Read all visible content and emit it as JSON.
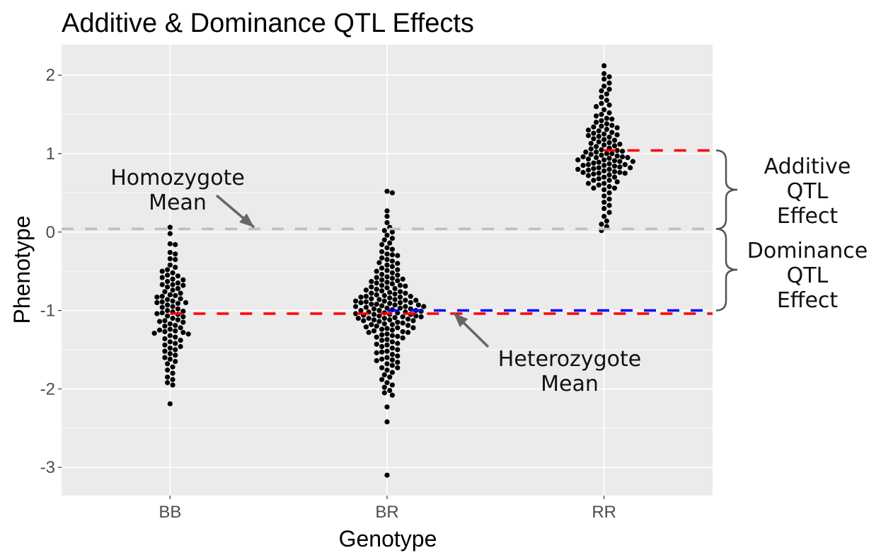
{
  "chart_data": {
    "type": "scatter",
    "subtype": "beeswarm",
    "title": "Additive & Dominance QTL Effects",
    "xlabel": "Genotype",
    "ylabel": "Phenotype",
    "categories": [
      "BB",
      "BR",
      "RR"
    ],
    "ylim": [
      -3.36,
      2.39
    ],
    "yticks": [
      2,
      1,
      0,
      -1,
      -2,
      -3
    ],
    "ytick_labels": [
      "2",
      "1",
      "0",
      "-1",
      "-2",
      "-3"
    ],
    "grid": true,
    "background": "#ebebeb",
    "point_color": "#000000",
    "points": {
      "BB": [
        0.06,
        -0.02,
        -0.15,
        -0.16,
        -0.26,
        -0.28,
        -0.34,
        -0.35,
        -0.42,
        -0.45,
        -0.48,
        -0.5,
        -0.52,
        -0.55,
        -0.56,
        -0.58,
        -0.6,
        -0.61,
        -0.63,
        -0.65,
        -0.67,
        -0.67,
        -0.68,
        -0.7,
        -0.72,
        -0.74,
        -0.76,
        -0.78,
        -0.8,
        -0.81,
        -0.82,
        -0.83,
        -0.85,
        -0.86,
        -0.88,
        -0.89,
        -0.9,
        -0.9,
        -0.91,
        -0.93,
        -0.95,
        -0.96,
        -0.98,
        -1.0,
        -1.01,
        -1.02,
        -1.03,
        -1.04,
        -1.05,
        -1.07,
        -1.08,
        -1.1,
        -1.12,
        -1.13,
        -1.14,
        -1.15,
        -1.17,
        -1.19,
        -1.2,
        -1.22,
        -1.24,
        -1.25,
        -1.26,
        -1.27,
        -1.28,
        -1.29,
        -1.3,
        -1.32,
        -1.34,
        -1.36,
        -1.38,
        -1.4,
        -1.42,
        -1.44,
        -1.46,
        -1.48,
        -1.5,
        -1.52,
        -1.55,
        -1.57,
        -1.6,
        -1.62,
        -1.65,
        -1.68,
        -1.72,
        -1.76,
        -1.8,
        -1.85,
        -1.88,
        -1.92,
        -1.95,
        -2.19
      ],
      "BR": [
        0.52,
        0.5,
        0.27,
        0.2,
        0.12,
        0.06,
        0.02,
        0.0,
        -0.04,
        -0.08,
        -0.1,
        -0.14,
        -0.16,
        -0.2,
        -0.22,
        -0.25,
        -0.28,
        -0.3,
        -0.33,
        -0.35,
        -0.37,
        -0.4,
        -0.42,
        -0.44,
        -0.46,
        -0.48,
        -0.5,
        -0.52,
        -0.54,
        -0.55,
        -0.57,
        -0.58,
        -0.6,
        -0.61,
        -0.62,
        -0.64,
        -0.65,
        -0.66,
        -0.68,
        -0.69,
        -0.7,
        -0.71,
        -0.72,
        -0.74,
        -0.75,
        -0.76,
        -0.77,
        -0.78,
        -0.79,
        -0.8,
        -0.81,
        -0.82,
        -0.83,
        -0.84,
        -0.85,
        -0.86,
        -0.86,
        -0.87,
        -0.88,
        -0.89,
        -0.9,
        -0.9,
        -0.91,
        -0.92,
        -0.93,
        -0.94,
        -0.95,
        -0.95,
        -0.96,
        -0.97,
        -0.98,
        -0.99,
        -1.0,
        -1.0,
        -1.01,
        -1.02,
        -1.03,
        -1.04,
        -1.05,
        -1.05,
        -1.06,
        -1.07,
        -1.08,
        -1.09,
        -1.1,
        -1.1,
        -1.11,
        -1.12,
        -1.13,
        -1.14,
        -1.15,
        -1.16,
        -1.17,
        -1.18,
        -1.19,
        -1.2,
        -1.21,
        -1.22,
        -1.23,
        -1.24,
        -1.25,
        -1.26,
        -1.27,
        -1.28,
        -1.3,
        -1.31,
        -1.32,
        -1.34,
        -1.35,
        -1.37,
        -1.38,
        -1.4,
        -1.42,
        -1.44,
        -1.46,
        -1.48,
        -1.5,
        -1.52,
        -1.54,
        -1.56,
        -1.58,
        -1.6,
        -1.62,
        -1.64,
        -1.66,
        -1.68,
        -1.7,
        -1.73,
        -1.76,
        -1.79,
        -1.82,
        -1.85,
        -1.88,
        -1.92,
        -1.95,
        -1.98,
        -2.02,
        -2.05,
        -2.08,
        -2.23,
        -2.42,
        -3.1,
        -0.63,
        -0.73,
        -0.83,
        -0.93,
        -1.03,
        -1.13,
        -0.88,
        -0.98,
        -1.08,
        -0.78,
        -1.18,
        -0.68,
        -1.28,
        -0.92,
        -1.02,
        -0.97,
        -1.07,
        -0.87,
        -0.82,
        -1.12,
        -1.22,
        -0.59,
        -1.33,
        -1.43,
        -0.49,
        -0.39,
        -1.53,
        -1.63,
        -0.29,
        -1.73,
        -0.95,
        -1.0,
        -1.05,
        -0.9,
        -1.1
      ],
      "RR": [
        2.12,
        2.02,
        1.98,
        1.95,
        1.9,
        1.86,
        1.82,
        1.8,
        1.76,
        1.72,
        1.68,
        1.64,
        1.6,
        1.56,
        1.52,
        1.48,
        1.45,
        1.42,
        1.4,
        1.38,
        1.35,
        1.33,
        1.31,
        1.29,
        1.27,
        1.25,
        1.23,
        1.21,
        1.19,
        1.17,
        1.15,
        1.13,
        1.11,
        1.09,
        1.07,
        1.06,
        1.05,
        1.04,
        1.03,
        1.02,
        1.0,
        0.99,
        0.98,
        0.97,
        0.96,
        0.95,
        0.94,
        0.93,
        0.92,
        0.91,
        0.9,
        0.89,
        0.88,
        0.87,
        0.86,
        0.85,
        0.84,
        0.83,
        0.82,
        0.81,
        0.8,
        0.79,
        0.78,
        0.77,
        0.76,
        0.75,
        0.74,
        0.73,
        0.72,
        0.7,
        0.68,
        0.66,
        0.64,
        0.62,
        0.6,
        0.58,
        0.56,
        0.54,
        0.5,
        0.46,
        0.42,
        0.38,
        0.34,
        0.3,
        0.25,
        0.2,
        0.14,
        0.1,
        0.07,
        0.02,
        1.34,
        1.3,
        1.26,
        1.22,
        1.18,
        1.14,
        1.1,
        1.0,
        0.95,
        0.9,
        0.85,
        0.8,
        0.75,
        0.7,
        1.44,
        1.36,
        0.96,
        0.86,
        0.76,
        1.02,
        0.92,
        0.82,
        1.12,
        1.24,
        0.66,
        0.62,
        0.56,
        1.5,
        1.62
      ]
    },
    "reference_lines": [
      {
        "label": "Homozygote mean",
        "y": 0.04,
        "from": "left",
        "color": "#bebebe"
      },
      {
        "label": "BB mean",
        "y": -1.04,
        "from": "BB",
        "color": "#ff0000"
      },
      {
        "label": "RR mean",
        "y": 1.04,
        "from": "RR",
        "color": "#ff0000"
      },
      {
        "label": "Heterozygote mean",
        "y": -1.0,
        "from": "BR",
        "color": "#0000ff"
      }
    ],
    "annotations": {
      "homozygote": [
        "Homozygote",
        "Mean"
      ],
      "heterozygote": [
        "Heterozygote",
        "Mean"
      ],
      "additive": [
        "Additive",
        "QTL",
        "Effect"
      ],
      "dominance": [
        "Dominance",
        "QTL",
        "Effect"
      ]
    }
  }
}
